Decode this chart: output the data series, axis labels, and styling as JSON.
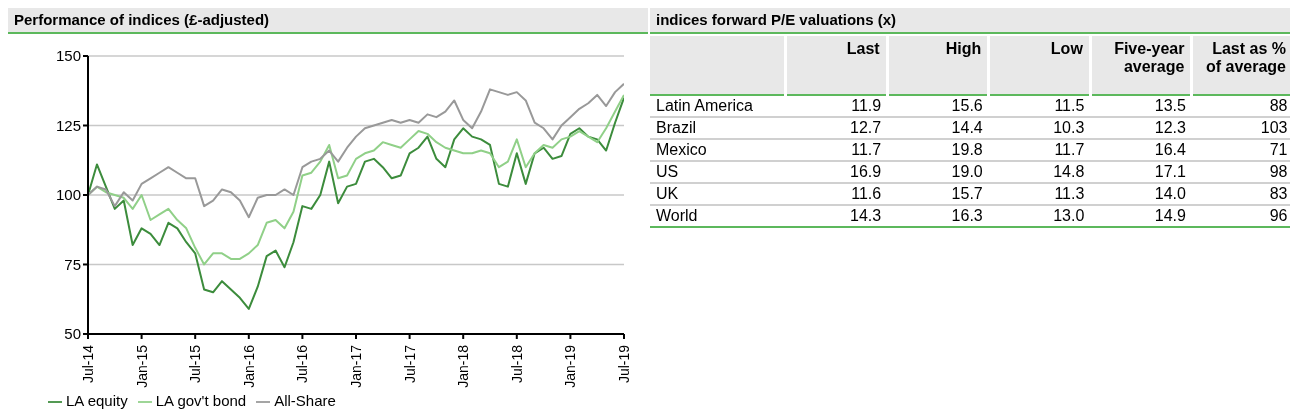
{
  "chart_data": [
    {
      "type": "line",
      "title": "Performance of indices (£-adjusted)",
      "x": [
        "2014-07",
        "2014-08",
        "2014-09",
        "2014-10",
        "2014-11",
        "2014-12",
        "2015-01",
        "2015-02",
        "2015-03",
        "2015-04",
        "2015-05",
        "2015-06",
        "2015-07",
        "2015-08",
        "2015-09",
        "2015-10",
        "2015-11",
        "2015-12",
        "2016-01",
        "2016-02",
        "2016-03",
        "2016-04",
        "2016-05",
        "2016-06",
        "2016-07",
        "2016-08",
        "2016-09",
        "2016-10",
        "2016-11",
        "2016-12",
        "2017-01",
        "2017-02",
        "2017-03",
        "2017-04",
        "2017-05",
        "2017-06",
        "2017-07",
        "2017-08",
        "2017-09",
        "2017-10",
        "2017-11",
        "2017-12",
        "2018-01",
        "2018-02",
        "2018-03",
        "2018-04",
        "2018-05",
        "2018-06",
        "2018-07",
        "2018-08",
        "2018-09",
        "2018-10",
        "2018-11",
        "2018-12",
        "2019-01",
        "2019-02",
        "2019-03",
        "2019-04",
        "2019-05",
        "2019-06",
        "2019-07"
      ],
      "series": [
        {
          "name": "LA equity",
          "color": "#3c8c3c",
          "values": [
            100,
            111,
            103,
            95,
            98,
            82,
            88,
            86,
            82,
            90,
            88,
            83,
            79,
            66,
            65,
            69,
            66,
            63,
            59,
            67,
            78,
            80,
            74,
            83,
            96,
            95,
            100,
            112,
            97,
            103,
            104,
            112,
            113,
            110,
            106,
            107,
            115,
            117,
            121,
            113,
            110,
            120,
            124,
            121,
            120,
            118,
            104,
            103,
            115,
            104,
            115,
            117,
            113,
            114,
            122,
            124,
            121,
            120,
            116,
            126,
            135
          ]
        },
        {
          "name": "LA gov't bond",
          "color": "#90d088",
          "values": [
            100,
            103,
            101,
            100,
            99,
            95,
            100,
            91,
            93,
            95,
            91,
            88,
            81,
            75,
            79,
            79,
            77,
            77,
            79,
            82,
            90,
            91,
            88,
            94,
            107,
            108,
            112,
            118,
            106,
            107,
            113,
            115,
            116,
            119,
            118,
            117,
            120,
            123,
            122,
            119,
            117,
            116,
            115,
            115,
            116,
            115,
            110,
            112,
            120,
            110,
            115,
            118,
            117,
            120,
            121,
            123,
            121,
            119,
            124,
            130,
            136
          ]
        },
        {
          "name": "All-Share",
          "color": "#999999",
          "values": [
            100,
            103,
            102,
            96,
            101,
            98,
            104,
            106,
            108,
            110,
            108,
            106,
            106,
            96,
            98,
            102,
            101,
            98,
            92,
            99,
            100,
            100,
            102,
            100,
            110,
            112,
            113,
            116,
            112,
            117,
            121,
            124,
            125,
            126,
            127,
            126,
            127,
            126,
            129,
            128,
            130,
            134,
            127,
            124,
            130,
            138,
            137,
            136,
            137,
            134,
            126,
            124,
            120,
            125,
            128,
            131,
            133,
            136,
            132,
            137,
            140
          ]
        }
      ],
      "xlim": [
        "2014-07",
        "2019-07"
      ],
      "xticks": [
        {
          "value": "2014-07",
          "label": "Jul-14"
        },
        {
          "value": "2015-01",
          "label": "Jan-15"
        },
        {
          "value": "2015-07",
          "label": "Jul-15"
        },
        {
          "value": "2016-01",
          "label": "Jan-16"
        },
        {
          "value": "2016-07",
          "label": "Jul-16"
        },
        {
          "value": "2017-01",
          "label": "Jan-17"
        },
        {
          "value": "2017-07",
          "label": "Jul-17"
        },
        {
          "value": "2018-01",
          "label": "Jan-18"
        },
        {
          "value": "2018-07",
          "label": "Jul-18"
        },
        {
          "value": "2019-01",
          "label": "Jan-19"
        },
        {
          "value": "2019-07",
          "label": "Jul-19"
        }
      ],
      "ylim": [
        50,
        150
      ],
      "yticks": [
        50,
        75,
        100,
        125,
        150
      ],
      "grid": "y",
      "legend": "bottom"
    },
    {
      "type": "heatmap",
      "title": "indices forward P/E valuations (x)",
      "categories": [
        "Last",
        "High",
        "Low",
        "Five-year average",
        "Last as % of average"
      ],
      "y_categories": [
        "Latin America",
        "Brazil",
        "Mexico",
        "US",
        "UK",
        "World"
      ],
      "cells": [
        [
          11.9,
          15.6,
          11.5,
          13.5,
          88
        ],
        [
          12.7,
          14.4,
          10.3,
          12.3,
          103
        ],
        [
          11.7,
          19.8,
          11.7,
          16.4,
          71
        ],
        [
          16.9,
          19.0,
          14.8,
          17.1,
          98
        ],
        [
          11.6,
          15.7,
          11.3,
          14.0,
          83
        ],
        [
          14.3,
          16.3,
          13.0,
          14.9,
          96
        ]
      ],
      "cell_labels": [
        [
          "11.9",
          "15.6",
          "11.5",
          "13.5",
          "88"
        ],
        [
          "12.7",
          "14.4",
          "10.3",
          "12.3",
          "103"
        ],
        [
          "11.7",
          "19.8",
          "11.7",
          "16.4",
          "71"
        ],
        [
          "16.9",
          "19.0",
          "14.8",
          "17.1",
          "98"
        ],
        [
          "11.6",
          "15.7",
          "11.3",
          "14.0",
          "83"
        ],
        [
          "14.3",
          "16.3",
          "13.0",
          "14.9",
          "96"
        ]
      ]
    }
  ]
}
